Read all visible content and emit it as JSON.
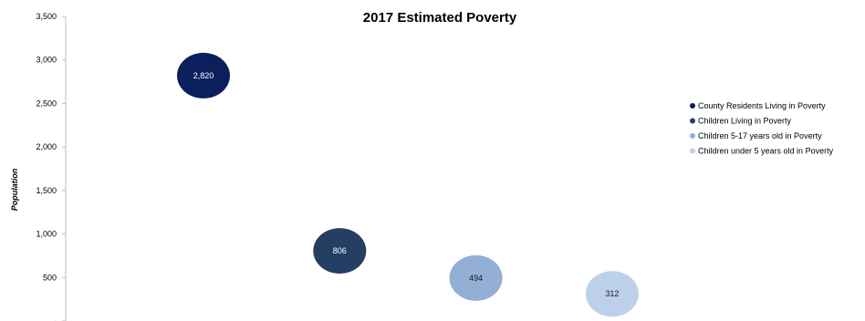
{
  "chart_data": {
    "type": "scatter",
    "title": "2017 Estimated Poverty",
    "ylabel": "Population",
    "ylim": [
      0,
      3500
    ],
    "y_ticks": [
      0,
      500,
      1000,
      1500,
      2000,
      2500,
      3000,
      3500
    ],
    "y_tick_labels": [
      "-",
      "500",
      "1,000",
      "1,500",
      "2,000",
      "2,500",
      "3,000",
      "3,500"
    ],
    "grid": false,
    "legend_position": "right",
    "series": [
      {
        "name": "County Residents Living in Poverty",
        "x": 1,
        "value": 2820,
        "label": "2,820",
        "color": "#0a1f5c",
        "label_color": "#ffffff"
      },
      {
        "name": "Children Living in Poverty",
        "x": 2,
        "value": 806,
        "label": "806",
        "color": "#243f63",
        "label_color": "#ffffff"
      },
      {
        "name": "Children 5-17 years old in Poverty",
        "x": 3,
        "value": 494,
        "label": "494",
        "color": "#93afd6",
        "label_color": "#1a1a1a"
      },
      {
        "name": "Children under 5 years old in Poverty",
        "x": 4,
        "value": 312,
        "label": "312",
        "color": "#bdd0ea",
        "label_color": "#1a1a1a"
      }
    ]
  }
}
